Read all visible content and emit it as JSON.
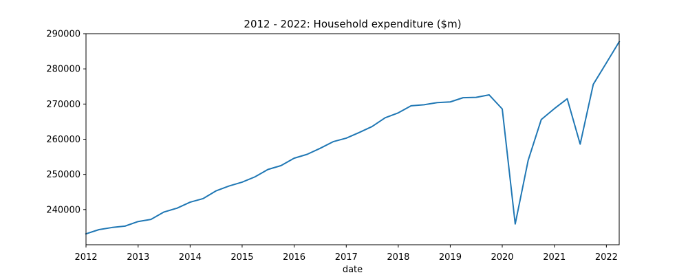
{
  "chart_data": {
    "type": "line",
    "title": "2012 - 2022: Household expenditure ($m)",
    "xlabel": "date",
    "ylabel": "",
    "x_ticks": [
      "2012",
      "2013",
      "2014",
      "2015",
      "2016",
      "2017",
      "2018",
      "2019",
      "2020",
      "2021",
      "2022"
    ],
    "y_ticks": [
      "240000",
      "250000",
      "260000",
      "270000",
      "280000",
      "290000"
    ],
    "xlim": [
      "2012-01-01",
      "2022-04-01"
    ],
    "ylim": [
      230000,
      290000
    ],
    "grid": false,
    "legend": "none",
    "line_color": "#1f77b4",
    "series": [
      {
        "x": [
          "2012-01-01",
          "2012-04-01",
          "2012-07-01",
          "2012-10-01",
          "2013-01-01",
          "2013-04-01",
          "2013-07-01",
          "2013-10-01",
          "2014-01-01",
          "2014-04-01",
          "2014-07-01",
          "2014-10-01",
          "2015-01-01",
          "2015-04-01",
          "2015-07-01",
          "2015-10-01",
          "2016-01-01",
          "2016-04-01",
          "2016-07-01",
          "2016-10-01",
          "2017-01-01",
          "2017-04-01",
          "2017-07-01",
          "2017-10-01",
          "2018-01-01",
          "2018-04-01",
          "2018-07-01",
          "2018-10-01",
          "2019-01-01",
          "2019-04-01",
          "2019-07-01",
          "2019-10-01",
          "2020-01-01",
          "2020-04-01",
          "2020-07-01",
          "2020-10-01",
          "2021-01-01",
          "2021-04-01",
          "2021-07-01",
          "2021-10-01",
          "2022-01-01",
          "2022-04-01"
        ],
        "values": [
          233100,
          234300,
          234900,
          235300,
          236600,
          237200,
          239300,
          240400,
          242100,
          243100,
          245300,
          246700,
          247800,
          249300,
          251400,
          252500,
          254600,
          255700,
          257400,
          259300,
          260300,
          261900,
          263600,
          266100,
          267500,
          269500,
          269800,
          270400,
          270600,
          271800,
          271900,
          272600,
          268600,
          235900,
          254000,
          265600,
          268700,
          271500,
          258600,
          275600,
          281700,
          287700
        ]
      }
    ]
  }
}
